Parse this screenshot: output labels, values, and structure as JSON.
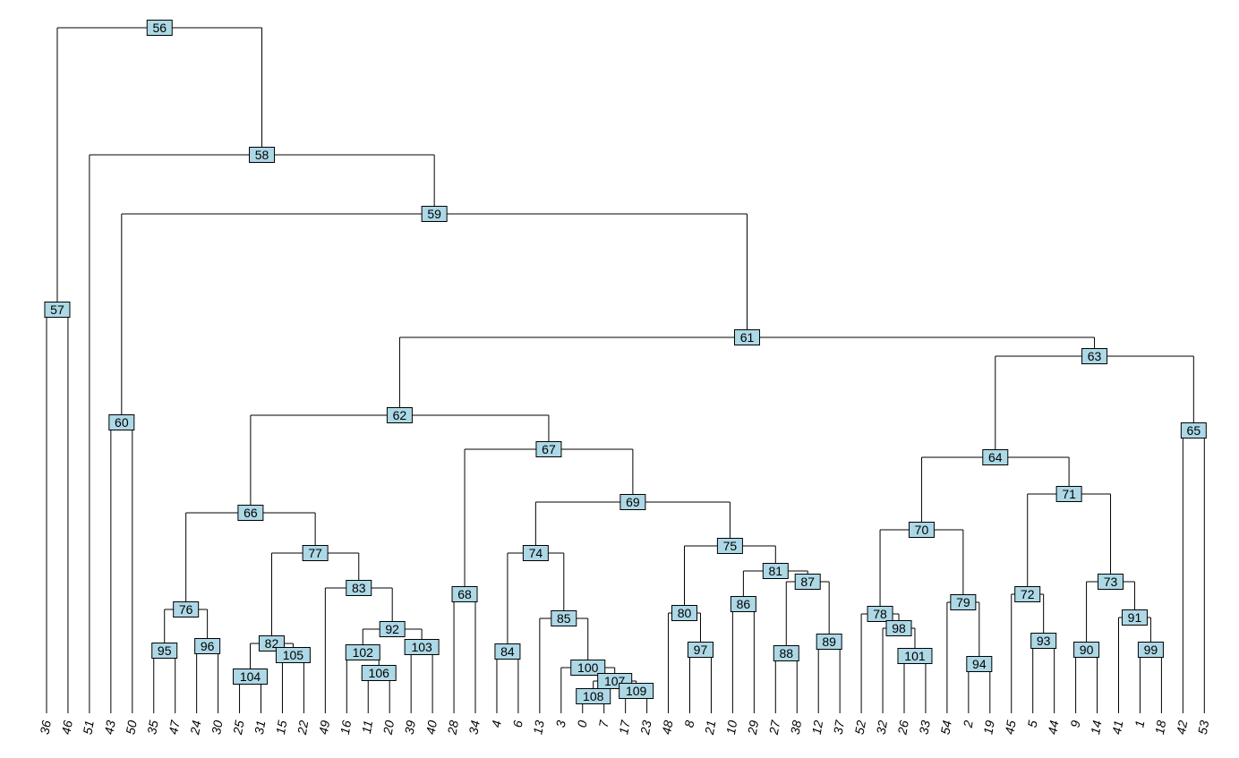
{
  "colors": {
    "node_fill": "#add8e6",
    "edge": "#000000",
    "background": "#ffffff"
  },
  "leaves": [
    "36",
    "46",
    "51",
    "43",
    "50",
    "35",
    "47",
    "24",
    "30",
    "25",
    "31",
    "15",
    "22",
    "49",
    "16",
    "11",
    "20",
    "39",
    "40",
    "28",
    "34",
    "4",
    "6",
    "13",
    "3",
    "0",
    "7",
    "17",
    "23",
    "48",
    "8",
    "21",
    "10",
    "29",
    "27",
    "38",
    "12",
    "37",
    "52",
    "32",
    "26",
    "33",
    "54",
    "2",
    "19",
    "45",
    "5",
    "44",
    "9",
    "14",
    "41",
    "1",
    "18",
    "42",
    "53"
  ],
  "nodes": [
    {
      "id": "56",
      "left": "57",
      "right": "58"
    },
    {
      "id": "57",
      "left": "36",
      "right": "46"
    },
    {
      "id": "58",
      "left": "51",
      "right": "59"
    },
    {
      "id": "59",
      "left": "60",
      "right": "61"
    },
    {
      "id": "60",
      "left": "43",
      "right": "50"
    },
    {
      "id": "61",
      "left": "62",
      "right": "63"
    },
    {
      "id": "62",
      "left": "66",
      "right": "67"
    },
    {
      "id": "66",
      "left": "76",
      "right": "77"
    },
    {
      "id": "76",
      "left": "95",
      "right": "96"
    },
    {
      "id": "95",
      "left": "35",
      "right": "47"
    },
    {
      "id": "96",
      "left": "24",
      "right": "30"
    },
    {
      "id": "77",
      "left": "82",
      "right": "83"
    },
    {
      "id": "82",
      "left": "104",
      "right": "105"
    },
    {
      "id": "104",
      "left": "25",
      "right": "31"
    },
    {
      "id": "105",
      "left": "15",
      "right": "22"
    },
    {
      "id": "83",
      "left": "49",
      "right": "92"
    },
    {
      "id": "92",
      "left": "102",
      "right": "103"
    },
    {
      "id": "102",
      "left": "16",
      "right": "106"
    },
    {
      "id": "106",
      "left": "11",
      "right": "20"
    },
    {
      "id": "103",
      "left": "39",
      "right": "40"
    },
    {
      "id": "67",
      "left": "68",
      "right": "69"
    },
    {
      "id": "68",
      "left": "28",
      "right": "34"
    },
    {
      "id": "69",
      "left": "74",
      "right": "75"
    },
    {
      "id": "74",
      "left": "84",
      "right": "85"
    },
    {
      "id": "84",
      "left": "4",
      "right": "6"
    },
    {
      "id": "85",
      "left": "13",
      "right": "100"
    },
    {
      "id": "100",
      "left": "3",
      "right": "107"
    },
    {
      "id": "107",
      "left": "108",
      "right": "109"
    },
    {
      "id": "108",
      "left": "0",
      "right": "7"
    },
    {
      "id": "109",
      "left": "17",
      "right": "23"
    },
    {
      "id": "75",
      "left": "80",
      "right": "81"
    },
    {
      "id": "80",
      "left": "48",
      "right": "97"
    },
    {
      "id": "97",
      "left": "8",
      "right": "21"
    },
    {
      "id": "81",
      "left": "86",
      "right": "87"
    },
    {
      "id": "86",
      "left": "10",
      "right": "29"
    },
    {
      "id": "87",
      "left": "88",
      "right": "89"
    },
    {
      "id": "88",
      "left": "27",
      "right": "38"
    },
    {
      "id": "89",
      "left": "12",
      "right": "37"
    },
    {
      "id": "63",
      "left": "64",
      "right": "65"
    },
    {
      "id": "64",
      "left": "70",
      "right": "71"
    },
    {
      "id": "70",
      "left": "78",
      "right": "79"
    },
    {
      "id": "78",
      "left": "52",
      "right": "98"
    },
    {
      "id": "98",
      "left": "32",
      "right": "101"
    },
    {
      "id": "101",
      "left": "26",
      "right": "33"
    },
    {
      "id": "79",
      "left": "54",
      "right": "94"
    },
    {
      "id": "94",
      "left": "2",
      "right": "19"
    },
    {
      "id": "71",
      "left": "72",
      "right": "73"
    },
    {
      "id": "72",
      "left": "45",
      "right": "93"
    },
    {
      "id": "93",
      "left": "5",
      "right": "44"
    },
    {
      "id": "73",
      "left": "90",
      "right": "91"
    },
    {
      "id": "90",
      "left": "9",
      "right": "14"
    },
    {
      "id": "91",
      "left": "41",
      "right": "99"
    },
    {
      "id": "99",
      "left": "1",
      "right": "18"
    },
    {
      "id": "65",
      "left": "42",
      "right": "53"
    }
  ]
}
